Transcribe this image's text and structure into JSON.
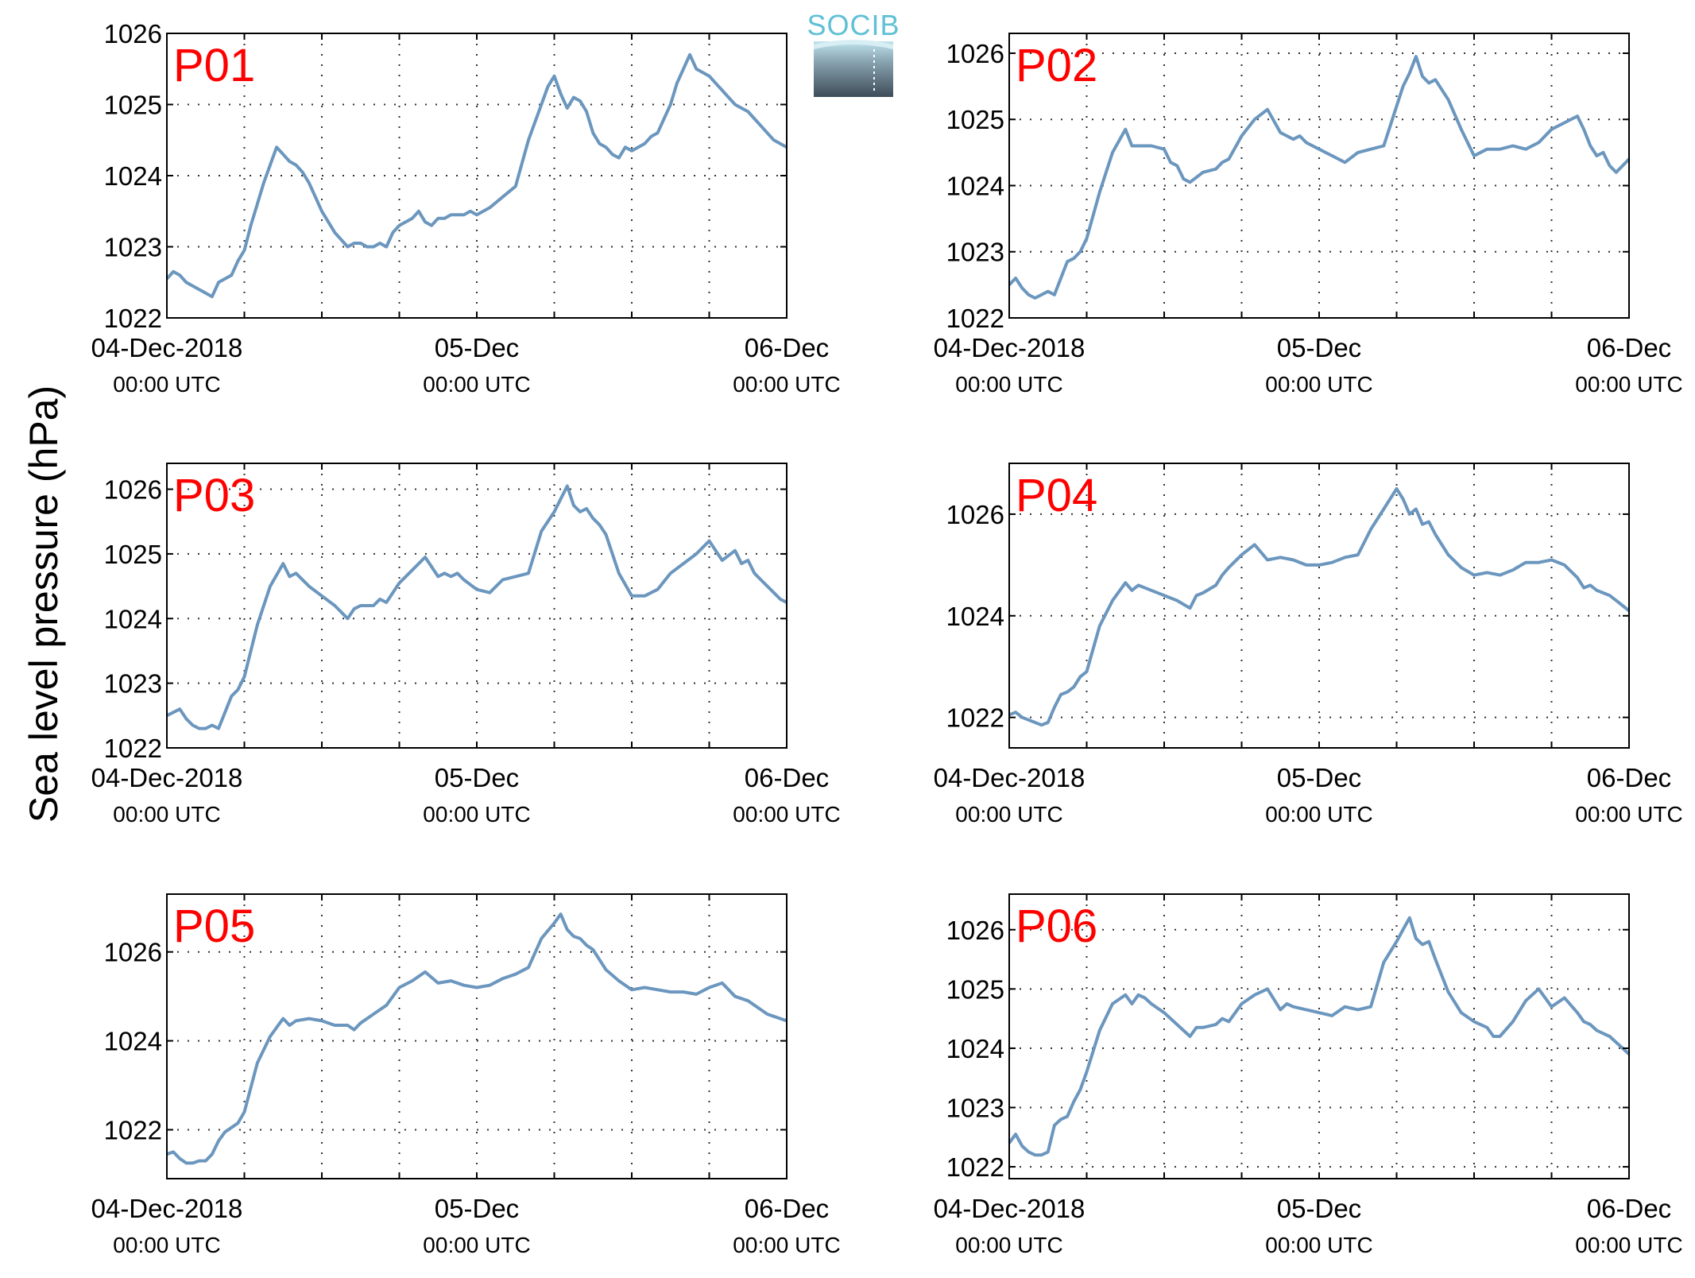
{
  "figure": {
    "ylabel": "Sea level pressure (hPa)",
    "logo_text": "SOCIB",
    "x_tick_dates": [
      "04-Dec-2018",
      "05-Dec",
      "06-Dec"
    ],
    "x_tick_times": [
      "00:00 UTC",
      "00:00 UTC",
      "00:00 UTC"
    ],
    "colors": {
      "line": "#6b96be",
      "panel_label": "#ff0000",
      "grid": "#333333",
      "axes": "#000000",
      "logo_top": "#5fc0d6",
      "logo_bottom": "#3d4c58"
    }
  },
  "chart_data": [
    {
      "type": "line",
      "label": "P01",
      "x_unit": "hours since 04-Dec-2018 00:00 UTC",
      "xlim": [
        0,
        48
      ],
      "ylim": [
        1022,
        1026
      ],
      "yticks": [
        1022,
        1023,
        1024,
        1025,
        1026
      ],
      "x": [
        0,
        0.5,
        1,
        1.5,
        2,
        2.5,
        3,
        3.5,
        4,
        4.5,
        5,
        5.5,
        6,
        6.5,
        7,
        7.5,
        8,
        8.5,
        9,
        9.5,
        10,
        10.5,
        11,
        11.5,
        12,
        13,
        14,
        14.5,
        15,
        15.5,
        16,
        16.5,
        17,
        17.5,
        18,
        18.5,
        19,
        19.5,
        20,
        20.5,
        21,
        21.5,
        22,
        22.5,
        23,
        23.5,
        24,
        25,
        26,
        27,
        28,
        29,
        29.5,
        30,
        30.5,
        31,
        31.5,
        32,
        32.5,
        33,
        33.5,
        34,
        34.5,
        35,
        35.5,
        36,
        36.5,
        37,
        37.5,
        38,
        38.5,
        39,
        39.5,
        40,
        40.5,
        41,
        41.5,
        42,
        42.5,
        43,
        43.5,
        44,
        44.5,
        45,
        45.5,
        46,
        46.5,
        47,
        47.5,
        48
      ],
      "y": [
        1022.55,
        1022.65,
        1022.6,
        1022.5,
        1022.45,
        1022.4,
        1022.35,
        1022.3,
        1022.5,
        1022.55,
        1022.6,
        1022.8,
        1022.95,
        1023.3,
        1023.6,
        1023.9,
        1024.15,
        1024.4,
        1024.3,
        1024.2,
        1024.15,
        1024.05,
        1023.9,
        1023.7,
        1023.5,
        1023.2,
        1023.0,
        1023.05,
        1023.05,
        1023.0,
        1023.0,
        1023.05,
        1023.0,
        1023.2,
        1023.3,
        1023.35,
        1023.4,
        1023.5,
        1023.35,
        1023.3,
        1023.4,
        1023.4,
        1023.45,
        1023.45,
        1023.45,
        1023.5,
        1023.45,
        1023.55,
        1023.7,
        1023.85,
        1024.5,
        1025.0,
        1025.25,
        1025.4,
        1025.15,
        1024.95,
        1025.1,
        1025.05,
        1024.9,
        1024.6,
        1024.45,
        1024.4,
        1024.3,
        1024.25,
        1024.4,
        1024.35,
        1024.4,
        1024.45,
        1024.55,
        1024.6,
        1024.8,
        1025.0,
        1025.3,
        1025.5,
        1025.7,
        1025.5,
        1025.45,
        1025.4,
        1025.3,
        1025.2,
        1025.1,
        1025.0,
        1024.95,
        1024.9,
        1024.8,
        1024.7,
        1024.6,
        1024.5,
        1024.45,
        1024.4
      ],
      "x_cut": 48
    },
    {
      "type": "line",
      "label": "P02",
      "x_unit": "hours since 04-Dec-2018 00:00 UTC",
      "xlim": [
        0,
        48
      ],
      "ylim": [
        1022,
        1026.3
      ],
      "yticks": [
        1022,
        1023,
        1024,
        1025,
        1026
      ],
      "x": [
        0,
        0.5,
        1,
        1.5,
        2,
        2.5,
        3,
        3.5,
        4,
        4.5,
        5,
        5.5,
        6,
        7,
        8,
        9,
        9.5,
        10,
        11,
        12,
        12.5,
        13,
        13.5,
        14,
        15,
        16,
        16.5,
        17,
        18,
        19,
        20,
        21,
        21.5,
        22,
        22.5,
        23,
        24,
        25,
        26,
        27,
        28,
        29,
        30,
        30.5,
        31,
        31.5,
        32,
        32.5,
        33,
        34,
        35,
        36,
        37,
        38,
        39,
        40,
        41,
        42,
        43,
        44,
        44.5,
        45,
        45.5,
        46,
        46.5,
        47,
        47.5,
        48
      ],
      "y": [
        1022.5,
        1022.6,
        1022.45,
        1022.35,
        1022.3,
        1022.35,
        1022.4,
        1022.35,
        1022.6,
        1022.85,
        1022.9,
        1023.0,
        1023.2,
        1023.9,
        1024.5,
        1024.85,
        1024.6,
        1024.6,
        1024.6,
        1024.55,
        1024.35,
        1024.3,
        1024.1,
        1024.05,
        1024.2,
        1024.25,
        1024.35,
        1024.4,
        1024.75,
        1025.0,
        1025.15,
        1024.8,
        1024.75,
        1024.7,
        1024.75,
        1024.65,
        1024.55,
        1024.45,
        1024.35,
        1024.5,
        1024.55,
        1024.6,
        1025.2,
        1025.5,
        1025.7,
        1025.95,
        1025.65,
        1025.55,
        1025.6,
        1025.3,
        1024.85,
        1024.45,
        1024.55,
        1024.55,
        1024.6,
        1024.55,
        1024.65,
        1024.85,
        1024.95,
        1025.05,
        1024.85,
        1024.6,
        1024.45,
        1024.5,
        1024.3,
        1024.2,
        1024.3,
        1024.4
      ]
    },
    {
      "type": "line",
      "label": "P03",
      "x_unit": "hours since 04-Dec-2018 00:00 UTC",
      "xlim": [
        0,
        48
      ],
      "ylim": [
        1022,
        1026.4
      ],
      "yticks": [
        1022,
        1023,
        1024,
        1025,
        1026
      ],
      "x": [
        0,
        0.5,
        1,
        1.5,
        2,
        2.5,
        3,
        3.5,
        4,
        5,
        5.5,
        6,
        7,
        8,
        9,
        9.5,
        10,
        11,
        12,
        13,
        14,
        14.5,
        15,
        16,
        16.5,
        17,
        18,
        19,
        20,
        21,
        21.5,
        22,
        22.5,
        23,
        24,
        25,
        26,
        27,
        28,
        29,
        30,
        30.5,
        31,
        31.5,
        32,
        32.5,
        33,
        33.5,
        34,
        35,
        36,
        37,
        37.5,
        38,
        39,
        40,
        41,
        42,
        43,
        44,
        44.5,
        45,
        45.5,
        46,
        46.5,
        47,
        47.5,
        48
      ],
      "y": [
        1022.5,
        1022.55,
        1022.6,
        1022.45,
        1022.35,
        1022.3,
        1022.3,
        1022.35,
        1022.3,
        1022.8,
        1022.9,
        1023.1,
        1023.9,
        1024.5,
        1024.85,
        1024.65,
        1024.7,
        1024.5,
        1024.35,
        1024.2,
        1024.0,
        1024.15,
        1024.2,
        1024.2,
        1024.3,
        1024.25,
        1024.55,
        1024.75,
        1024.95,
        1024.65,
        1024.7,
        1024.65,
        1024.7,
        1024.6,
        1024.45,
        1024.4,
        1024.6,
        1024.65,
        1024.7,
        1025.35,
        1025.65,
        1025.85,
        1026.05,
        1025.75,
        1025.65,
        1025.7,
        1025.55,
        1025.45,
        1025.3,
        1024.7,
        1024.35,
        1024.35,
        1024.4,
        1024.45,
        1024.7,
        1024.85,
        1025.0,
        1025.2,
        1024.9,
        1025.05,
        1024.85,
        1024.9,
        1024.7,
        1024.6,
        1024.5,
        1024.4,
        1024.3,
        1024.25
      ]
    },
    {
      "type": "line",
      "label": "P04",
      "x_unit": "hours since 04-Dec-2018 00:00 UTC",
      "xlim": [
        0,
        48
      ],
      "ylim": [
        1021.4,
        1027.0
      ],
      "yticks": [
        1022,
        1024,
        1026
      ],
      "x": [
        0,
        0.5,
        1,
        1.5,
        2,
        2.5,
        3,
        3.5,
        4,
        4.5,
        5,
        5.5,
        6,
        7,
        8,
        9,
        9.5,
        10,
        11,
        12,
        13,
        14,
        14.5,
        15,
        16,
        16.5,
        17,
        18,
        19,
        20,
        21,
        22,
        23,
        24,
        25,
        26,
        27,
        28,
        29,
        30,
        30.5,
        31,
        31.5,
        32,
        32.5,
        33,
        34,
        35,
        36,
        37,
        38,
        39,
        40,
        41,
        42,
        43,
        44,
        44.5,
        45,
        45.5,
        46,
        46.5,
        47,
        47.5,
        48
      ],
      "y": [
        1022.05,
        1022.1,
        1022.0,
        1021.95,
        1021.9,
        1021.85,
        1021.9,
        1022.2,
        1022.45,
        1022.5,
        1022.6,
        1022.8,
        1022.9,
        1023.8,
        1024.3,
        1024.65,
        1024.5,
        1024.6,
        1024.5,
        1024.4,
        1024.3,
        1024.15,
        1024.4,
        1024.45,
        1024.6,
        1024.8,
        1024.95,
        1025.2,
        1025.4,
        1025.1,
        1025.15,
        1025.1,
        1025.0,
        1025.0,
        1025.05,
        1025.15,
        1025.2,
        1025.7,
        1026.1,
        1026.5,
        1026.3,
        1026.0,
        1026.1,
        1025.8,
        1025.85,
        1025.6,
        1025.2,
        1024.95,
        1024.8,
        1024.85,
        1024.8,
        1024.9,
        1025.05,
        1025.05,
        1025.1,
        1025.0,
        1024.75,
        1024.55,
        1024.6,
        1024.5,
        1024.45,
        1024.4,
        1024.3,
        1024.2,
        1024.1
      ]
    },
    {
      "type": "line",
      "label": "P05",
      "x_unit": "hours since 04-Dec-2018 00:00 UTC",
      "xlim": [
        0,
        48
      ],
      "ylim": [
        1020.9,
        1027.3
      ],
      "yticks": [
        1022,
        1024,
        1026
      ],
      "x": [
        0,
        0.5,
        1,
        1.5,
        2,
        2.5,
        3,
        3.5,
        4,
        4.5,
        5,
        5.5,
        6,
        7,
        8,
        9,
        9.5,
        10,
        11,
        12,
        13,
        14,
        14.5,
        15,
        16,
        17,
        18,
        19,
        20,
        21,
        22,
        23,
        24,
        25,
        26,
        27,
        28,
        29,
        30,
        30.5,
        31,
        31.5,
        32,
        32.5,
        33,
        34,
        35,
        36,
        37,
        38,
        39,
        40,
        41,
        42,
        43,
        44,
        45,
        46,
        46.5,
        47,
        47.5,
        48
      ],
      "y": [
        1021.45,
        1021.5,
        1021.35,
        1021.25,
        1021.25,
        1021.3,
        1021.3,
        1021.45,
        1021.75,
        1021.95,
        1022.05,
        1022.15,
        1022.4,
        1023.5,
        1024.1,
        1024.5,
        1024.35,
        1024.45,
        1024.5,
        1024.45,
        1024.35,
        1024.35,
        1024.25,
        1024.4,
        1024.6,
        1024.8,
        1025.2,
        1025.35,
        1025.55,
        1025.3,
        1025.35,
        1025.25,
        1025.2,
        1025.25,
        1025.4,
        1025.5,
        1025.65,
        1026.3,
        1026.65,
        1026.85,
        1026.5,
        1026.35,
        1026.3,
        1026.15,
        1026.05,
        1025.6,
        1025.35,
        1025.15,
        1025.2,
        1025.15,
        1025.1,
        1025.1,
        1025.05,
        1025.2,
        1025.3,
        1025.0,
        1024.9,
        1024.7,
        1024.6,
        1024.55,
        1024.5,
        1024.45
      ]
    },
    {
      "type": "line",
      "label": "P06",
      "x_unit": "hours since 04-Dec-2018 00:00 UTC",
      "xlim": [
        0,
        48
      ],
      "ylim": [
        1021.8,
        1026.6
      ],
      "yticks": [
        1022,
        1023,
        1024,
        1025,
        1026
      ],
      "x": [
        0,
        0.5,
        1,
        1.5,
        2,
        2.5,
        3,
        3.5,
        4,
        4.5,
        5,
        5.5,
        6,
        7,
        8,
        9,
        9.5,
        10,
        10.5,
        11,
        12,
        13,
        14,
        14.5,
        15,
        16,
        16.5,
        17,
        18,
        19,
        20,
        21,
        21.5,
        22,
        23,
        24,
        25,
        26,
        27,
        28,
        29,
        30,
        30.5,
        31,
        31.5,
        32,
        32.5,
        33,
        34,
        35,
        36,
        37,
        37.5,
        38,
        39,
        40,
        41,
        42,
        43,
        44,
        44.5,
        45,
        45.5,
        46,
        46.5,
        47,
        47.5,
        48
      ],
      "y": [
        1022.4,
        1022.55,
        1022.35,
        1022.25,
        1022.2,
        1022.2,
        1022.25,
        1022.7,
        1022.8,
        1022.85,
        1023.1,
        1023.3,
        1023.6,
        1024.3,
        1024.75,
        1024.9,
        1024.75,
        1024.9,
        1024.85,
        1024.75,
        1024.6,
        1024.4,
        1024.2,
        1024.35,
        1024.35,
        1024.4,
        1024.5,
        1024.45,
        1024.75,
        1024.9,
        1025.0,
        1024.65,
        1024.75,
        1024.7,
        1024.65,
        1024.6,
        1024.55,
        1024.7,
        1024.65,
        1024.7,
        1025.45,
        1025.8,
        1026.0,
        1026.2,
        1025.85,
        1025.75,
        1025.8,
        1025.5,
        1024.95,
        1024.6,
        1024.45,
        1024.35,
        1024.2,
        1024.2,
        1024.45,
        1024.8,
        1025.0,
        1024.7,
        1024.85,
        1024.6,
        1024.45,
        1024.4,
        1024.3,
        1024.25,
        1024.2,
        1024.1,
        1024.0,
        1023.9
      ]
    }
  ]
}
